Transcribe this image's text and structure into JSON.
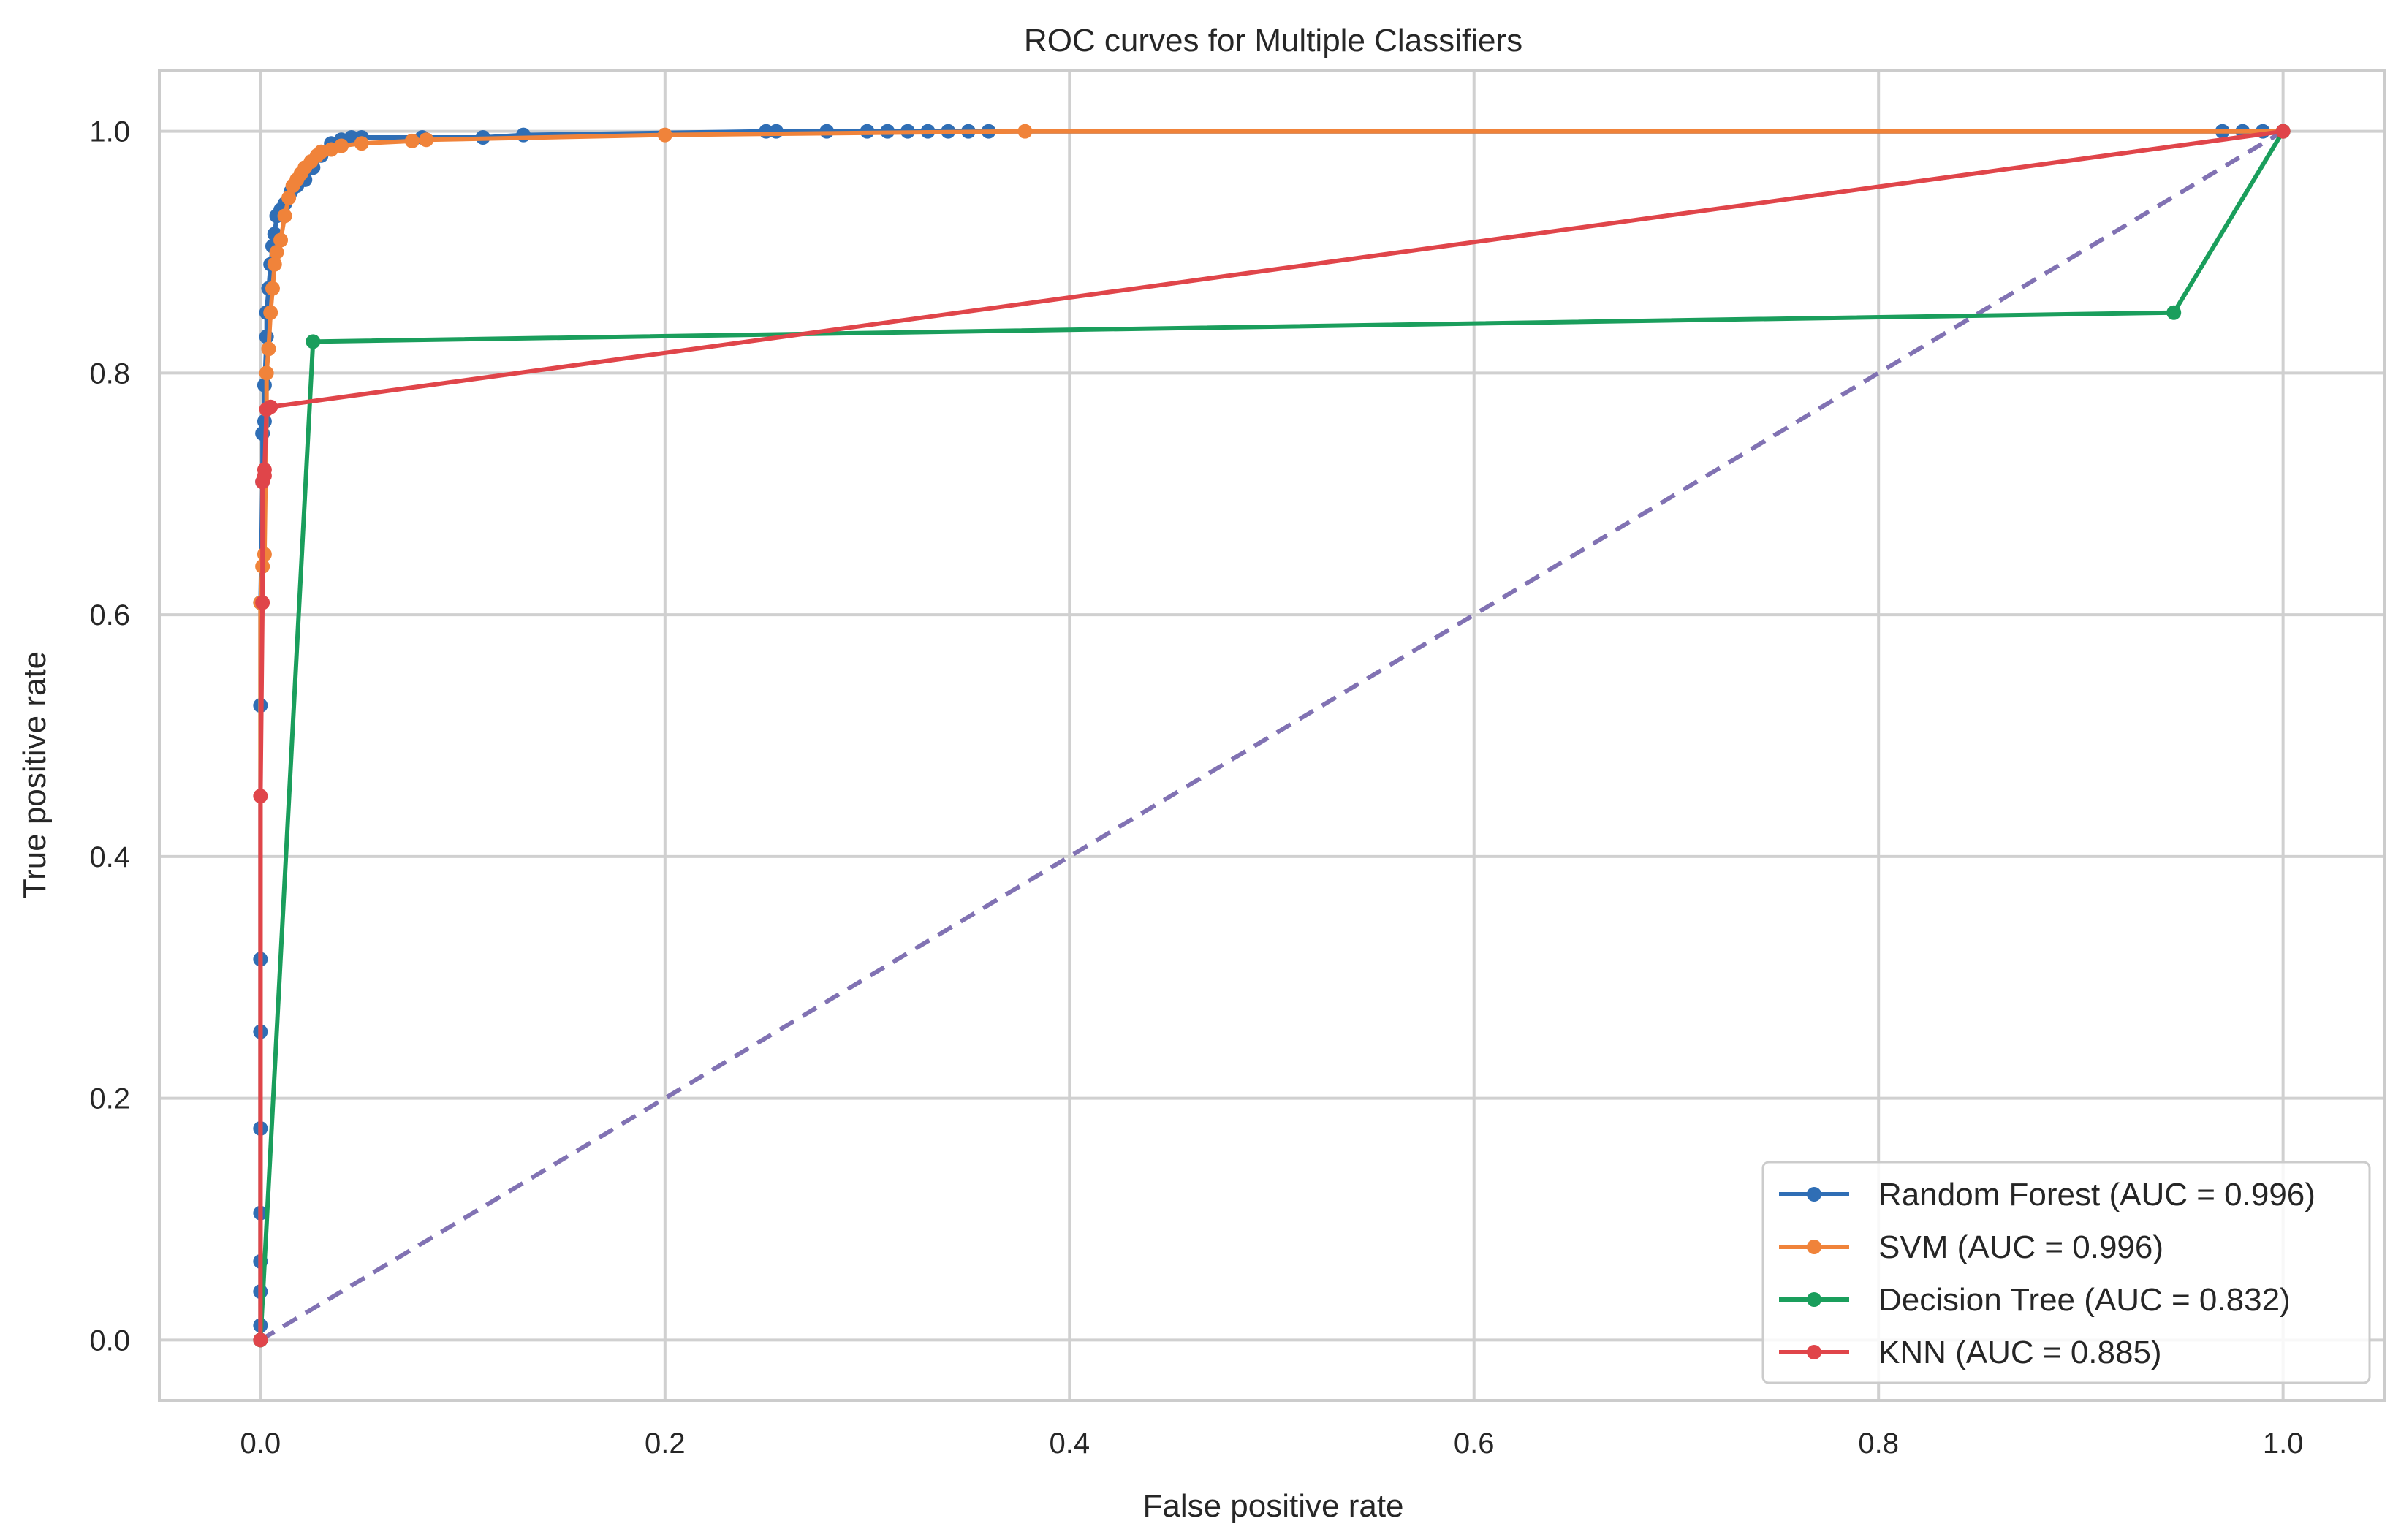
{
  "chart_data": {
    "type": "line",
    "title": "ROC curves for Multiple Classifiers",
    "xlabel": "False positive rate",
    "ylabel": "True positive rate",
    "xlim": [
      -0.05,
      1.05
    ],
    "ylim": [
      -0.05,
      1.05
    ],
    "xticks": [
      0.0,
      0.2,
      0.4,
      0.6,
      0.8,
      1.0
    ],
    "yticks": [
      0.0,
      0.2,
      0.4,
      0.6,
      0.8,
      1.0
    ],
    "xtick_labels": [
      "0.0",
      "0.2",
      "0.4",
      "0.6",
      "0.8",
      "1.0"
    ],
    "ytick_labels": [
      "0.0",
      "0.2",
      "0.4",
      "0.6",
      "0.8",
      "1.0"
    ],
    "grid": true,
    "legend_position": "bottom-right",
    "series": [
      {
        "name": "Random Forest (AUC = 0.996)",
        "color": "#2f6eb5",
        "marker": "circle",
        "x": [
          0.0,
          0.0,
          0.0,
          0.0,
          0.0,
          0.0,
          0.0,
          0.0,
          0.0,
          0.0,
          0.001,
          0.001,
          0.002,
          0.002,
          0.003,
          0.003,
          0.004,
          0.005,
          0.006,
          0.007,
          0.008,
          0.01,
          0.012,
          0.015,
          0.018,
          0.022,
          0.026,
          0.03,
          0.035,
          0.04,
          0.045,
          0.05,
          0.08,
          0.11,
          0.13,
          0.25,
          0.255,
          0.28,
          0.3,
          0.31,
          0.32,
          0.33,
          0.34,
          0.35,
          0.36,
          0.97,
          0.98,
          0.99,
          1.0
        ],
        "y": [
          0.0,
          0.012,
          0.04,
          0.065,
          0.105,
          0.175,
          0.255,
          0.315,
          0.525,
          0.61,
          0.71,
          0.75,
          0.76,
          0.79,
          0.83,
          0.85,
          0.87,
          0.89,
          0.905,
          0.915,
          0.93,
          0.935,
          0.94,
          0.95,
          0.955,
          0.96,
          0.97,
          0.98,
          0.99,
          0.993,
          0.995,
          0.995,
          0.995,
          0.995,
          0.997,
          1.0,
          1.0,
          1.0,
          1.0,
          1.0,
          1.0,
          1.0,
          1.0,
          1.0,
          1.0,
          1.0,
          1.0,
          1.0,
          1.0
        ]
      },
      {
        "name": "SVM (AUC = 0.996)",
        "color": "#f0833a",
        "marker": "circle",
        "x": [
          0.0,
          0.0,
          0.001,
          0.002,
          0.003,
          0.003,
          0.004,
          0.005,
          0.006,
          0.007,
          0.008,
          0.01,
          0.012,
          0.014,
          0.016,
          0.018,
          0.02,
          0.022,
          0.025,
          0.028,
          0.03,
          0.035,
          0.04,
          0.05,
          0.075,
          0.082,
          0.2,
          0.378,
          1.0
        ],
        "y": [
          0.0,
          0.61,
          0.64,
          0.65,
          0.77,
          0.8,
          0.82,
          0.85,
          0.87,
          0.89,
          0.9,
          0.91,
          0.93,
          0.945,
          0.955,
          0.96,
          0.965,
          0.97,
          0.975,
          0.98,
          0.983,
          0.985,
          0.988,
          0.99,
          0.992,
          0.993,
          0.997,
          1.0,
          1.0
        ]
      },
      {
        "name": "Decision Tree (AUC = 0.832)",
        "color": "#1a9e5c",
        "marker": "circle",
        "x": [
          0.0,
          0.026,
          0.946,
          1.0
        ],
        "y": [
          0.0,
          0.826,
          0.85,
          1.0
        ]
      },
      {
        "name": "KNN (AUC = 0.885)",
        "color": "#e0454a",
        "marker": "circle",
        "x": [
          0.0,
          0.0,
          0.001,
          0.001,
          0.002,
          0.002,
          0.003,
          0.005,
          1.0
        ],
        "y": [
          0.0,
          0.45,
          0.61,
          0.71,
          0.715,
          0.72,
          0.77,
          0.772,
          1.0
        ]
      }
    ],
    "reference_line": {
      "x": [
        0.0,
        1.0
      ],
      "y": [
        0.0,
        1.0
      ],
      "color": "#8172b3",
      "style": "dashed"
    },
    "colors": {
      "grid": "#d0d0d0",
      "frame": "#cccccc",
      "text": "#262626"
    }
  }
}
